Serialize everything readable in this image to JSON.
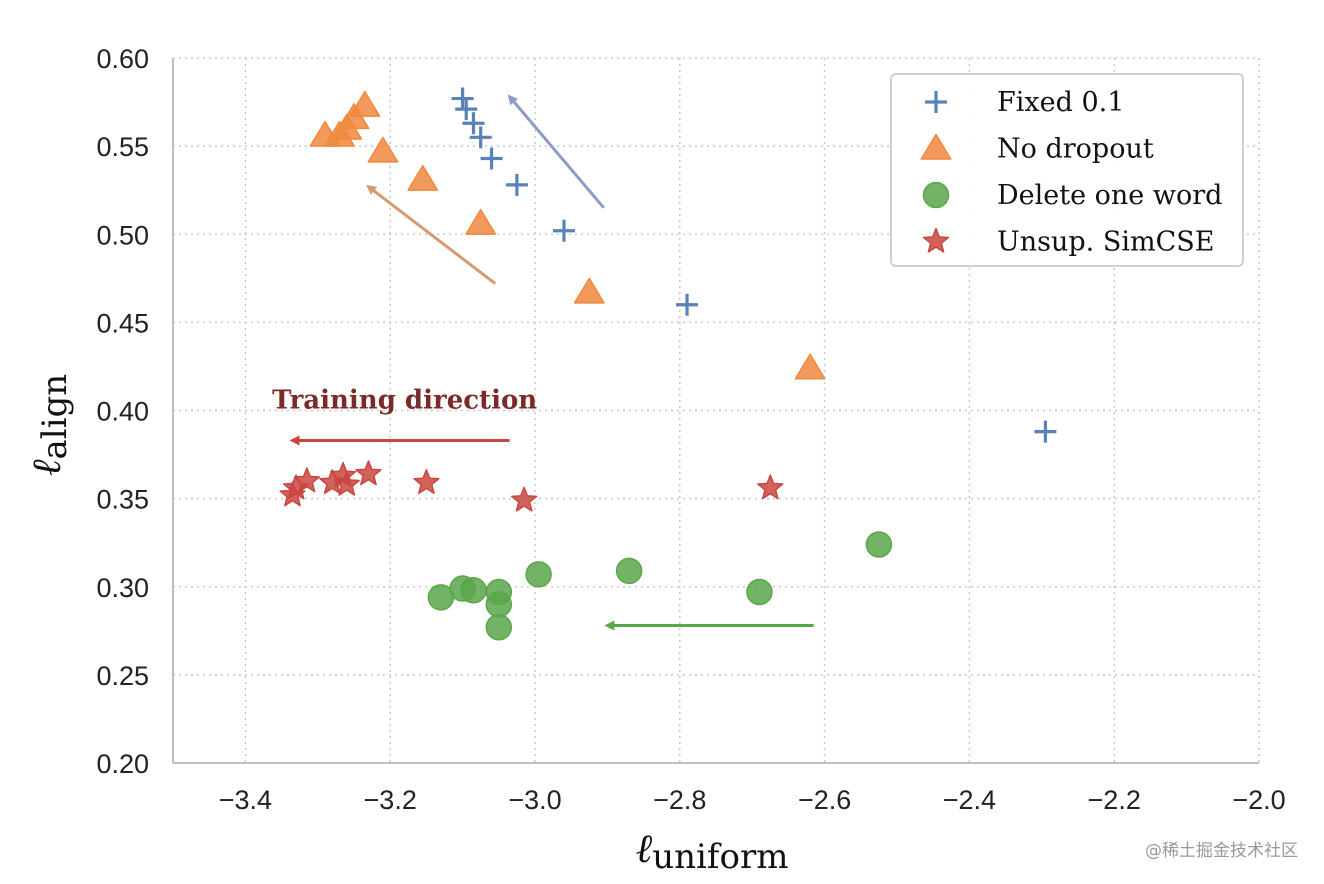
{
  "chart_data": {
    "type": "scatter",
    "xlabel_main": "ℓ",
    "xlabel_sub": "uniform",
    "ylabel_main": "ℓ",
    "ylabel_sub": "align",
    "xlim": [
      -3.5,
      -2.0
    ],
    "ylim": [
      0.2,
      0.6
    ],
    "x_ticks": [
      -3.4,
      -3.2,
      -3.0,
      -2.8,
      -2.6,
      -2.4,
      -2.2,
      -2.0
    ],
    "x_tick_labels": [
      "−3.4",
      "−3.2",
      "−3.0",
      "−2.8",
      "−2.6",
      "−2.4",
      "−2.2",
      "−2.0"
    ],
    "y_ticks": [
      0.2,
      0.25,
      0.3,
      0.35,
      0.4,
      0.45,
      0.5,
      0.55,
      0.6
    ],
    "y_tick_labels": [
      "0.20",
      "0.25",
      "0.30",
      "0.35",
      "0.40",
      "0.45",
      "0.50",
      "0.55",
      "0.60"
    ],
    "grid": true,
    "legend_position": "top-right",
    "series": [
      {
        "name": "Fixed 0.1",
        "marker": "plus",
        "color": "#5a82b8",
        "points": [
          [
            -3.1,
            0.577
          ],
          [
            -3.095,
            0.571
          ],
          [
            -3.085,
            0.563
          ],
          [
            -3.075,
            0.555
          ],
          [
            -3.06,
            0.543
          ],
          [
            -3.025,
            0.528
          ],
          [
            -2.96,
            0.502
          ],
          [
            -2.79,
            0.46
          ],
          [
            -2.295,
            0.388
          ]
        ]
      },
      {
        "name": "No dropout",
        "marker": "triangle",
        "color": "#f0883e",
        "points": [
          [
            -3.235,
            0.573
          ],
          [
            -3.25,
            0.566
          ],
          [
            -3.26,
            0.56
          ],
          [
            -3.27,
            0.556
          ],
          [
            -3.29,
            0.556
          ],
          [
            -3.21,
            0.547
          ],
          [
            -3.155,
            0.531
          ],
          [
            -3.075,
            0.506
          ],
          [
            -2.925,
            0.467
          ],
          [
            -2.62,
            0.424
          ]
        ]
      },
      {
        "name": "Delete one word",
        "marker": "circle",
        "color": "#5aa64a",
        "points": [
          [
            -3.13,
            0.294
          ],
          [
            -3.1,
            0.299
          ],
          [
            -3.085,
            0.298
          ],
          [
            -3.05,
            0.297
          ],
          [
            -3.05,
            0.29
          ],
          [
            -3.05,
            0.277
          ],
          [
            -2.995,
            0.307
          ],
          [
            -2.87,
            0.309
          ],
          [
            -2.69,
            0.297
          ],
          [
            -2.525,
            0.324
          ]
        ]
      },
      {
        "name": "Unsup. SimCSE",
        "marker": "star",
        "color": "#c94640",
        "points": [
          [
            -3.335,
            0.352
          ],
          [
            -3.33,
            0.356
          ],
          [
            -3.315,
            0.36
          ],
          [
            -3.28,
            0.359
          ],
          [
            -3.265,
            0.363
          ],
          [
            -3.26,
            0.358
          ],
          [
            -3.23,
            0.364
          ],
          [
            -3.15,
            0.359
          ],
          [
            -3.015,
            0.349
          ],
          [
            -2.675,
            0.356
          ]
        ]
      }
    ],
    "annotations": {
      "text": "Training direction",
      "text_pos": [
        -3.18,
        0.401
      ],
      "text_color": "#7a2a28",
      "arrows": [
        {
          "from": [
            -2.905,
            0.515
          ],
          "to": [
            -3.035,
            0.578
          ],
          "color": "#8c9bc8"
        },
        {
          "from": [
            -3.055,
            0.472
          ],
          "to": [
            -3.23,
            0.527
          ],
          "color": "#d59a6e"
        },
        {
          "from": [
            -3.035,
            0.383
          ],
          "to": [
            -3.335,
            0.383
          ],
          "color": "#c94640"
        },
        {
          "from": [
            -2.615,
            0.278
          ],
          "to": [
            -2.9,
            0.278
          ],
          "color": "#5aa64a"
        }
      ]
    }
  },
  "watermark": "@稀土掘金技术社区"
}
